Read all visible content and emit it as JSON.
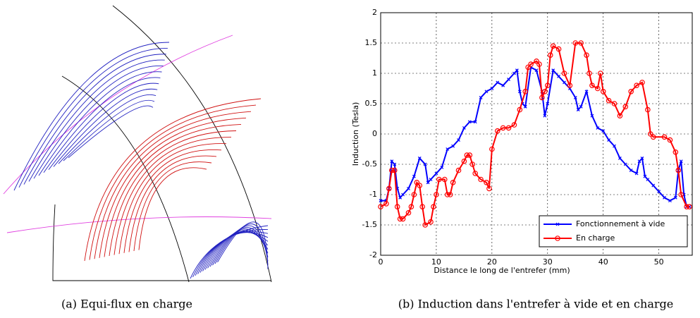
{
  "captions": [
    "(a) Equi-flux en charge",
    "(b) Induction dans l'entrefer à vide et en charge"
  ],
  "chart_data": {
    "type": "line",
    "xlabel": "Distance le long de l'entrefer (mm)",
    "ylabel": "Induction (Tesla)",
    "xlim": [
      0,
      56
    ],
    "xticks": [
      0,
      10,
      20,
      30,
      40,
      50
    ],
    "ylim": [
      -2,
      2
    ],
    "yticks": [
      -2,
      -1.5,
      -1,
      -0.5,
      0,
      0.5,
      1,
      1.5,
      2
    ],
    "grid": true,
    "legend": "lower right",
    "series": [
      {
        "name": "Fonctionnement à vide",
        "color": "#0000ff",
        "marker": "x",
        "x": [
          0,
          1,
          1.5,
          2,
          2.5,
          3,
          3.5,
          4,
          5,
          6,
          7,
          8,
          8.5,
          9,
          10,
          11,
          12,
          13,
          14,
          15,
          16,
          17,
          18,
          19,
          20,
          21,
          22,
          23,
          24,
          24.5,
          25,
          25.5,
          26,
          27,
          28,
          29,
          29.5,
          30,
          31,
          32,
          33,
          34,
          35,
          35.5,
          36,
          37,
          38,
          39,
          40,
          41,
          42,
          43,
          44,
          45,
          46,
          46.5,
          47,
          47.5,
          48,
          49,
          50,
          51,
          52,
          53,
          53.5,
          54,
          54.5,
          55,
          55.5
        ],
        "values": [
          -1.1,
          -1.1,
          -0.9,
          -0.45,
          -0.5,
          -0.9,
          -1.05,
          -1.0,
          -0.9,
          -0.7,
          -0.4,
          -0.5,
          -0.8,
          -0.75,
          -0.65,
          -0.55,
          -0.25,
          -0.2,
          -0.1,
          0.1,
          0.2,
          0.2,
          0.6,
          0.7,
          0.75,
          0.85,
          0.8,
          0.9,
          1.0,
          1.05,
          0.7,
          0.5,
          0.45,
          1.1,
          1.05,
          0.7,
          0.3,
          0.5,
          1.05,
          0.95,
          0.85,
          0.75,
          0.6,
          0.4,
          0.45,
          0.7,
          0.3,
          0.1,
          0.05,
          -0.1,
          -0.2,
          -0.4,
          -0.5,
          -0.6,
          -0.65,
          -0.45,
          -0.4,
          -0.7,
          -0.75,
          -0.85,
          -0.95,
          -1.05,
          -1.1,
          -1.05,
          -0.6,
          -0.45,
          -1.0,
          -1.2,
          -1.2
        ]
      },
      {
        "name": "En charge",
        "color": "#ff0000",
        "marker": "o",
        "x": [
          0,
          1,
          1.5,
          2,
          2.5,
          3,
          3.5,
          4,
          5,
          5.5,
          6,
          6.5,
          7,
          7.5,
          8,
          9,
          9.5,
          10,
          10.5,
          11.5,
          12,
          12.5,
          13,
          14,
          15,
          15.5,
          16,
          16.5,
          17,
          18,
          19,
          19.5,
          20,
          21,
          22,
          23,
          24,
          25,
          26,
          26.5,
          27,
          28,
          28.5,
          29,
          29.5,
          30,
          30.5,
          31,
          32,
          33,
          34,
          35,
          36,
          37,
          37.5,
          38,
          39,
          39.5,
          40,
          41,
          42,
          43,
          44,
          45,
          46,
          47,
          48,
          48.5,
          49,
          51,
          52,
          53,
          53.5,
          54,
          55,
          55.5
        ],
        "values": [
          -1.2,
          -1.15,
          -0.9,
          -0.6,
          -0.6,
          -1.2,
          -1.4,
          -1.4,
          -1.3,
          -1.2,
          -1.0,
          -0.8,
          -0.85,
          -1.2,
          -1.5,
          -1.45,
          -1.2,
          -1.0,
          -0.75,
          -0.75,
          -1.0,
          -1.0,
          -0.8,
          -0.6,
          -0.45,
          -0.35,
          -0.35,
          -0.5,
          -0.65,
          -0.75,
          -0.8,
          -0.9,
          -0.25,
          0.05,
          0.1,
          0.1,
          0.15,
          0.4,
          0.7,
          1.1,
          1.15,
          1.2,
          1.15,
          0.6,
          0.7,
          0.8,
          1.3,
          1.45,
          1.4,
          1.0,
          0.8,
          1.5,
          1.5,
          1.3,
          1.0,
          0.8,
          0.75,
          1.0,
          0.7,
          0.55,
          0.5,
          0.3,
          0.45,
          0.7,
          0.8,
          0.85,
          0.4,
          0,
          -0.05,
          -0.05,
          -0.1,
          -0.3,
          -0.6,
          -1.0,
          -1.2,
          -1.2
        ]
      }
    ]
  }
}
